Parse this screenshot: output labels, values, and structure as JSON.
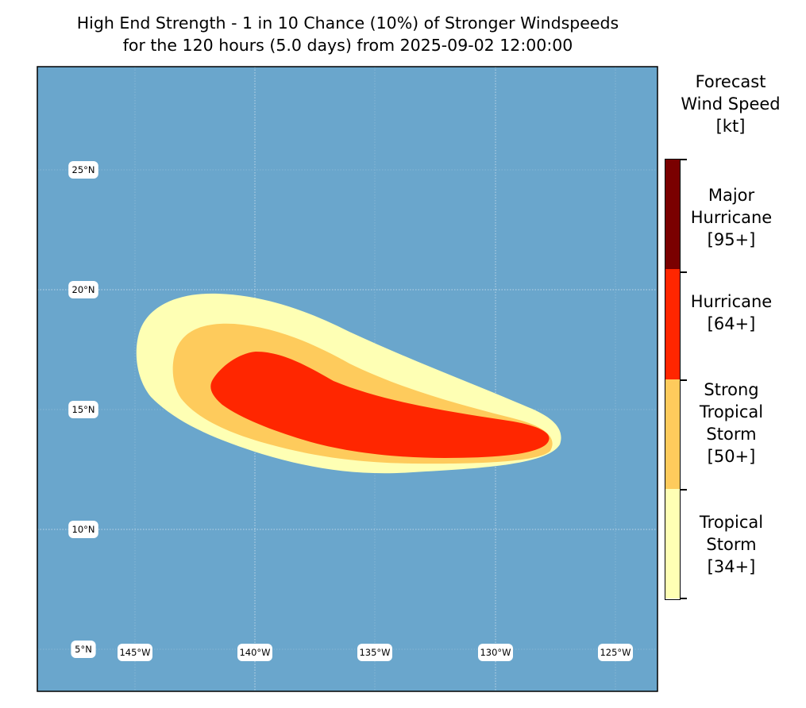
{
  "title": {
    "line1": "High End Strength - 1 in 10 Chance (10%) of Stronger Windspeeds",
    "line2": "for the 120 hours (5.0 days) from 2025-09-02 12:00:00"
  },
  "map": {
    "ocean_color": "#6aa6cc",
    "lat_labels": [
      "25°N",
      "20°N",
      "15°N",
      "10°N",
      "5°N"
    ],
    "lon_labels": [
      "145°W",
      "140°W",
      "135°W",
      "130°W",
      "125°W"
    ]
  },
  "colorbar": {
    "title": [
      "Forecast",
      "Wind Speed",
      "[kt]"
    ],
    "categories": [
      {
        "lines": [
          "Major",
          "Hurricane",
          "[95+]"
        ],
        "color": "#7a0000"
      },
      {
        "lines": [
          "Hurricane",
          "[64+]"
        ],
        "color": "#ff2600"
      },
      {
        "lines": [
          "Strong",
          "Tropical",
          "Storm",
          "[50+]"
        ],
        "color": "#fecb5c"
      },
      {
        "lines": [
          "Tropical",
          "Storm",
          "[34+]"
        ],
        "color": "#feffb4"
      }
    ]
  }
}
